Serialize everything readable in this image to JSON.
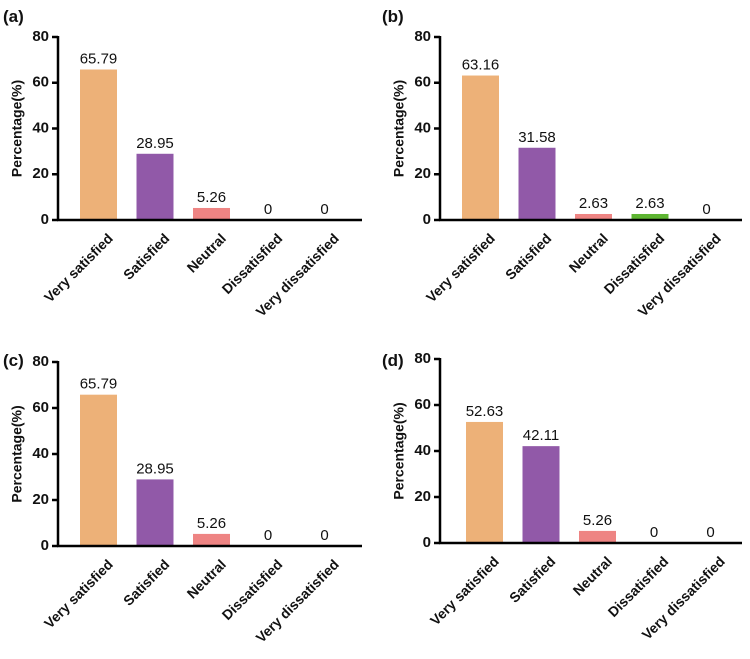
{
  "chart_data": [
    {
      "type": "bar",
      "panel_label": "(a)",
      "ylabel": "Percentage(%)",
      "ylim": [
        0,
        80
      ],
      "yticks": [
        0,
        20,
        40,
        60,
        80
      ],
      "categories": [
        "Very satisfied",
        "Satisfied",
        "Neutral",
        "Dissatisfied",
        "Very dissatisfied"
      ],
      "values": [
        65.79,
        28.95,
        5.26,
        0,
        0
      ],
      "value_labels": [
        "65.79",
        "28.95",
        "5.26",
        "0",
        "0"
      ]
    },
    {
      "type": "bar",
      "panel_label": "(b)",
      "ylabel": "Percentage(%)",
      "ylim": [
        0,
        80
      ],
      "yticks": [
        0,
        20,
        40,
        60,
        80
      ],
      "categories": [
        "Very satisfied",
        "Satisfied",
        "Neutral",
        "Dissatisfied",
        "Very dissatisfied"
      ],
      "values": [
        63.16,
        31.58,
        2.63,
        2.63,
        0
      ],
      "value_labels": [
        "63.16",
        "31.58",
        "2.63",
        "2.63",
        "0"
      ]
    },
    {
      "type": "bar",
      "panel_label": "(c)",
      "ylabel": "Percentage(%)",
      "ylim": [
        0,
        80
      ],
      "yticks": [
        0,
        20,
        40,
        60,
        80
      ],
      "categories": [
        "Very satisfied",
        "Satisfied",
        "Neutral",
        "Dissatisfied",
        "Very dissatisfied"
      ],
      "values": [
        65.79,
        28.95,
        5.26,
        0,
        0
      ],
      "value_labels": [
        "65.79",
        "28.95",
        "5.26",
        "0",
        "0"
      ]
    },
    {
      "type": "bar",
      "panel_label": "(d)",
      "ylabel": "Percentage(%)",
      "ylim": [
        0,
        80
      ],
      "yticks": [
        0,
        20,
        40,
        60,
        80
      ],
      "categories": [
        "Very satisfied",
        "Satisfied",
        "Neutral",
        "Dissatisfied",
        "Very dissatisfied"
      ],
      "values": [
        52.63,
        42.11,
        5.26,
        0,
        0
      ],
      "value_labels": [
        "52.63",
        "42.11",
        "5.26",
        "0",
        "0"
      ]
    }
  ],
  "colors": {
    "very_satisfied": "#EDB178",
    "satisfied": "#9159A8",
    "neutral": "#EE8483",
    "dissatisfied": "#5DB531",
    "very_dissatisfied": "#4A90D9",
    "axis": "#000000"
  }
}
